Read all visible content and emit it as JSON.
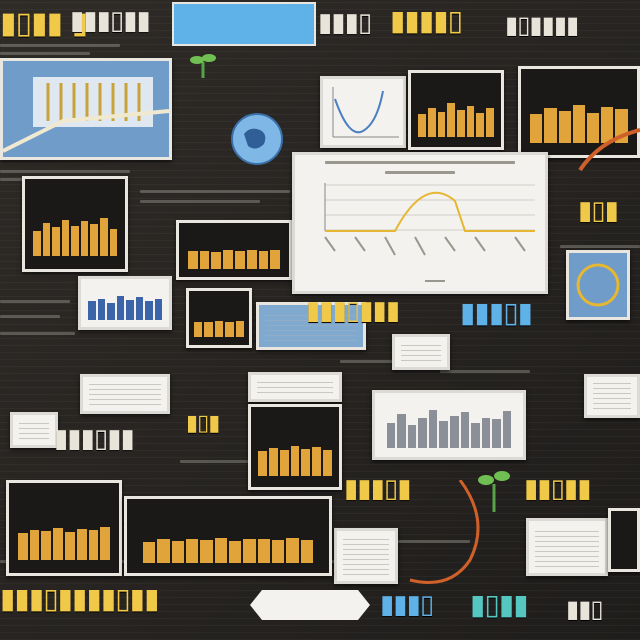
{
  "scene": {
    "colors": {
      "background": "#2a2724",
      "accent_yellow": "#f0c948",
      "accent_blue": "#5fb2e8",
      "card_border": "#e9e6df",
      "curve": "#e6b733"
    },
    "icons": [
      "globe-icon",
      "plant-icon",
      "cable-wire",
      "magnifier-circle"
    ]
  }
}
